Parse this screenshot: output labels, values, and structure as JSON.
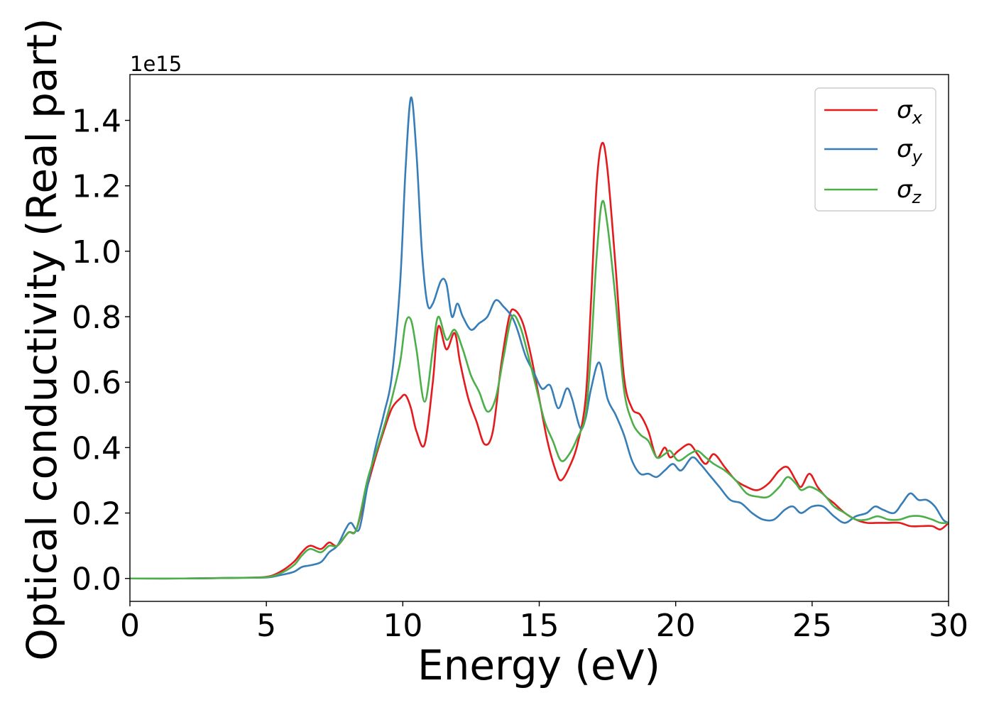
{
  "chart_data": {
    "type": "line",
    "xlabel": "Energy (eV)",
    "ylabel": "Optical conductivity (Real part)",
    "y_offset_text": "1e15",
    "xlim": [
      0,
      30
    ],
    "ylim": [
      -0.07,
      1.54
    ],
    "xticks": [
      0,
      5,
      10,
      15,
      20,
      25,
      30
    ],
    "xtick_labels": [
      "0",
      "5",
      "10",
      "15",
      "20",
      "25",
      "30"
    ],
    "yticks": [
      0.0,
      0.2,
      0.4,
      0.6,
      0.8,
      1.0,
      1.2,
      1.4
    ],
    "ytick_labels": [
      "0.0",
      "0.2",
      "0.4",
      "0.6",
      "0.8",
      "1.0",
      "1.2",
      "1.4"
    ],
    "grid": false,
    "legend_position": "top-right",
    "series": [
      {
        "name": "σ",
        "subscript": "x",
        "color": "#e41a1c",
        "x": [
          0,
          2,
          4,
          5,
          5.5,
          6,
          6.3,
          6.6,
          7,
          7.3,
          7.6,
          8,
          8.3,
          8.7,
          9,
          9.3,
          9.6,
          9.9,
          10.1,
          10.3,
          10.5,
          10.8,
          11.1,
          11.3,
          11.6,
          11.9,
          12.1,
          12.4,
          12.7,
          13,
          13.3,
          13.6,
          13.9,
          14.1,
          14.4,
          14.7,
          15,
          15.3,
          15.6,
          15.8,
          16.1,
          16.4,
          16.7,
          16.9,
          17.1,
          17.3,
          17.5,
          17.8,
          18.1,
          18.4,
          18.7,
          19,
          19.3,
          19.6,
          19.8,
          20.1,
          20.5,
          20.8,
          21.1,
          21.4,
          21.8,
          22.2,
          22.6,
          23,
          23.4,
          23.8,
          24.1,
          24.4,
          24.6,
          24.9,
          25.2,
          25.5,
          25.8,
          26.2,
          26.6,
          27,
          27.4,
          27.8,
          28.2,
          28.6,
          29,
          29.4,
          29.7,
          30
        ],
        "y": [
          0.0,
          0.0,
          0.002,
          0.005,
          0.02,
          0.05,
          0.08,
          0.1,
          0.09,
          0.11,
          0.1,
          0.14,
          0.15,
          0.28,
          0.37,
          0.45,
          0.52,
          0.55,
          0.56,
          0.52,
          0.45,
          0.41,
          0.6,
          0.77,
          0.7,
          0.75,
          0.66,
          0.55,
          0.48,
          0.41,
          0.45,
          0.65,
          0.8,
          0.82,
          0.78,
          0.68,
          0.55,
          0.42,
          0.33,
          0.3,
          0.34,
          0.41,
          0.55,
          0.85,
          1.2,
          1.33,
          1.25,
          0.95,
          0.62,
          0.52,
          0.5,
          0.45,
          0.37,
          0.4,
          0.37,
          0.39,
          0.41,
          0.38,
          0.35,
          0.38,
          0.34,
          0.3,
          0.28,
          0.27,
          0.29,
          0.33,
          0.34,
          0.3,
          0.28,
          0.32,
          0.28,
          0.25,
          0.23,
          0.2,
          0.18,
          0.17,
          0.17,
          0.17,
          0.17,
          0.16,
          0.16,
          0.16,
          0.15,
          0.17
        ]
      },
      {
        "name": "σ",
        "subscript": "y",
        "color": "#377eb8",
        "x": [
          0,
          2,
          4,
          5,
          5.5,
          6,
          6.3,
          6.6,
          7,
          7.3,
          7.6,
          7.9,
          8.1,
          8.4,
          8.7,
          9,
          9.3,
          9.6,
          9.9,
          10.1,
          10.3,
          10.5,
          10.7,
          10.9,
          11.1,
          11.4,
          11.6,
          11.8,
          12,
          12.2,
          12.5,
          12.8,
          13.1,
          13.4,
          13.7,
          14,
          14.2,
          14.5,
          14.8,
          15.1,
          15.4,
          15.7,
          16,
          16.2,
          16.5,
          16.7,
          16.9,
          17.2,
          17.5,
          17.8,
          18.1,
          18.4,
          18.7,
          19,
          19.3,
          19.6,
          19.9,
          20.2,
          20.6,
          20.9,
          21.2,
          21.6,
          22,
          22.4,
          22.8,
          23.2,
          23.6,
          24,
          24.3,
          24.6,
          25,
          25.4,
          25.8,
          26.2,
          26.6,
          27,
          27.3,
          27.6,
          28,
          28.3,
          28.6,
          28.9,
          29.2,
          29.5,
          29.8,
          30
        ],
        "y": [
          0.0,
          0.0,
          0.002,
          0.003,
          0.01,
          0.02,
          0.035,
          0.04,
          0.05,
          0.08,
          0.1,
          0.15,
          0.17,
          0.15,
          0.28,
          0.4,
          0.5,
          0.62,
          0.9,
          1.25,
          1.47,
          1.3,
          1.0,
          0.84,
          0.84,
          0.91,
          0.9,
          0.8,
          0.84,
          0.8,
          0.76,
          0.78,
          0.8,
          0.85,
          0.83,
          0.8,
          0.76,
          0.68,
          0.63,
          0.58,
          0.59,
          0.52,
          0.58,
          0.55,
          0.46,
          0.49,
          0.58,
          0.66,
          0.55,
          0.5,
          0.44,
          0.36,
          0.32,
          0.32,
          0.31,
          0.33,
          0.35,
          0.33,
          0.37,
          0.35,
          0.32,
          0.28,
          0.24,
          0.23,
          0.2,
          0.18,
          0.18,
          0.21,
          0.22,
          0.2,
          0.22,
          0.22,
          0.19,
          0.17,
          0.19,
          0.2,
          0.22,
          0.21,
          0.2,
          0.23,
          0.26,
          0.24,
          0.24,
          0.22,
          0.18,
          0.17
        ]
      },
      {
        "name": "σ",
        "subscript": "z",
        "color": "#4daf4a",
        "x": [
          0,
          2,
          4,
          5,
          5.5,
          6,
          6.3,
          6.6,
          7,
          7.3,
          7.6,
          8,
          8.3,
          8.7,
          9,
          9.3,
          9.6,
          9.9,
          10.1,
          10.3,
          10.5,
          10.8,
          11.1,
          11.3,
          11.6,
          11.9,
          12.2,
          12.5,
          12.8,
          13.1,
          13.4,
          13.7,
          14,
          14.3,
          14.6,
          14.9,
          15.2,
          15.5,
          15.8,
          16.1,
          16.4,
          16.7,
          16.9,
          17.1,
          17.3,
          17.5,
          17.8,
          18.1,
          18.4,
          18.7,
          19,
          19.3,
          19.6,
          19.8,
          20.1,
          20.5,
          20.8,
          21.1,
          21.4,
          21.8,
          22.2,
          22.6,
          23,
          23.4,
          23.8,
          24.1,
          24.4,
          24.6,
          24.9,
          25.2,
          25.5,
          25.8,
          26.2,
          26.6,
          27,
          27.4,
          27.8,
          28.2,
          28.6,
          29,
          29.4,
          29.7,
          30
        ],
        "y": [
          0.0,
          0.0,
          0.002,
          0.004,
          0.015,
          0.04,
          0.07,
          0.09,
          0.08,
          0.1,
          0.1,
          0.14,
          0.15,
          0.3,
          0.38,
          0.46,
          0.55,
          0.66,
          0.78,
          0.79,
          0.7,
          0.54,
          0.7,
          0.8,
          0.73,
          0.76,
          0.7,
          0.62,
          0.57,
          0.51,
          0.55,
          0.68,
          0.8,
          0.77,
          0.68,
          0.58,
          0.48,
          0.42,
          0.36,
          0.38,
          0.43,
          0.5,
          0.7,
          0.98,
          1.15,
          1.08,
          0.85,
          0.58,
          0.48,
          0.44,
          0.42,
          0.37,
          0.38,
          0.39,
          0.36,
          0.38,
          0.39,
          0.37,
          0.35,
          0.33,
          0.3,
          0.26,
          0.25,
          0.25,
          0.28,
          0.31,
          0.29,
          0.27,
          0.28,
          0.27,
          0.25,
          0.22,
          0.2,
          0.18,
          0.18,
          0.19,
          0.18,
          0.18,
          0.19,
          0.19,
          0.18,
          0.17,
          0.17
        ]
      }
    ]
  }
}
